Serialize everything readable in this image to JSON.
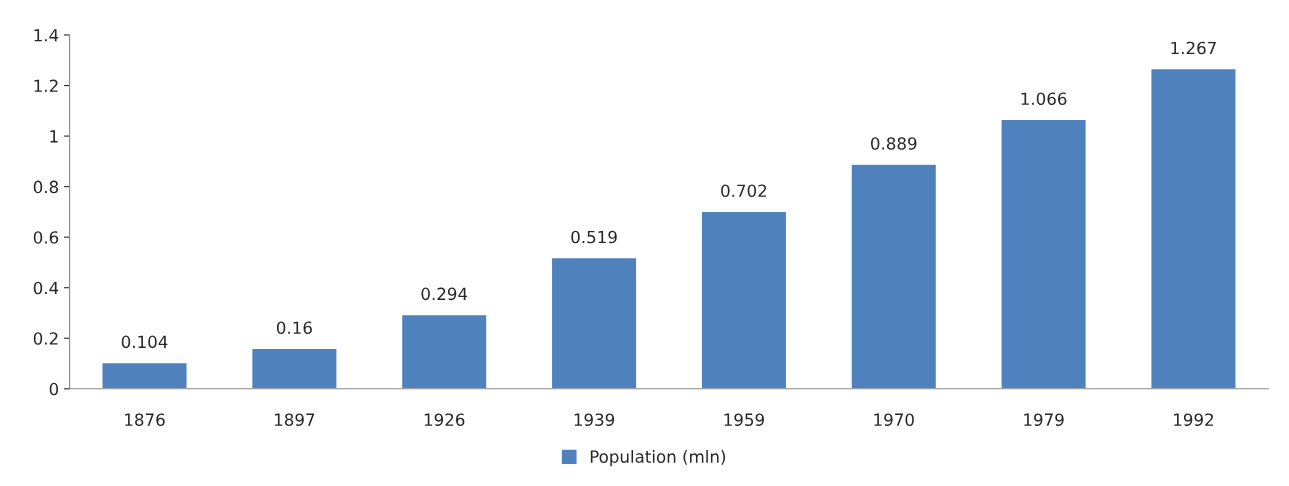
{
  "chart_data": {
    "type": "bar",
    "categories": [
      "1876",
      "1897",
      "1926",
      "1939",
      "1959",
      "1970",
      "1979",
      "1992"
    ],
    "series": [
      {
        "name": "Population (mln)",
        "color": "#4f81bd",
        "values": [
          0.104,
          0.16,
          0.294,
          0.519,
          0.702,
          0.889,
          1.066,
          1.267
        ]
      }
    ],
    "ylim": [
      0,
      1.4
    ],
    "yticks": [
      0,
      0.2,
      0.4,
      0.6,
      0.8,
      1,
      1.2,
      1.4
    ],
    "data_labels": true,
    "grid": false,
    "legend": "bottom"
  }
}
